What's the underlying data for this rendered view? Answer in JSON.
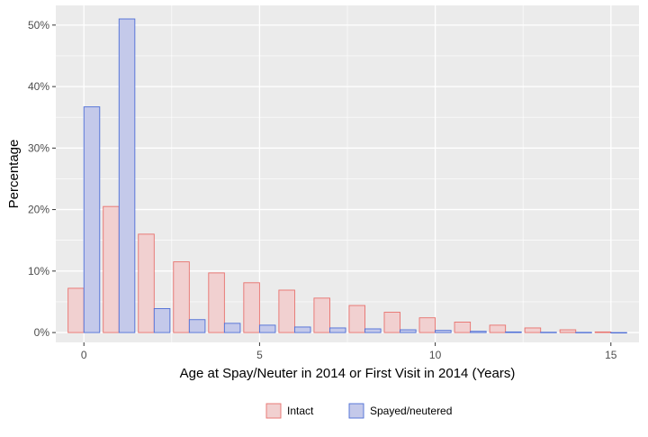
{
  "chart_data": {
    "type": "bar",
    "xlabel": "Age at Spay/Neuter in 2014 or First Visit in 2014 (Years)",
    "ylabel": "Percentage",
    "xlim": [
      -0.8,
      15.8
    ],
    "ylim": [
      -1.6,
      53.2
    ],
    "x_ticks": [
      0,
      5,
      10,
      15
    ],
    "y_ticks": [
      0,
      10,
      20,
      30,
      40,
      50
    ],
    "y_tick_labels": [
      "0%",
      "10%",
      "20%",
      "30%",
      "40%",
      "50%"
    ],
    "grid": true,
    "legend_position": "bottom",
    "categories": [
      0,
      1,
      2,
      3,
      4,
      5,
      6,
      7,
      8,
      9,
      10,
      11,
      12,
      13,
      14,
      15
    ],
    "series": [
      {
        "name": "Intact",
        "fill": "#f1d0d0",
        "stroke": "#e8716d",
        "values": [
          7.2,
          20.5,
          16.0,
          11.5,
          9.7,
          8.1,
          6.9,
          5.6,
          4.4,
          3.3,
          2.4,
          1.7,
          1.2,
          0.75,
          0.45,
          0.1
        ]
      },
      {
        "name": "Spayed/neutered",
        "fill": "#c4c9ea",
        "stroke": "#4e6ed6",
        "values": [
          36.7,
          51.0,
          3.9,
          2.1,
          1.5,
          1.2,
          0.9,
          0.75,
          0.6,
          0.45,
          0.35,
          0.2,
          0.1,
          0.05,
          0.03,
          0.0
        ]
      }
    ]
  }
}
